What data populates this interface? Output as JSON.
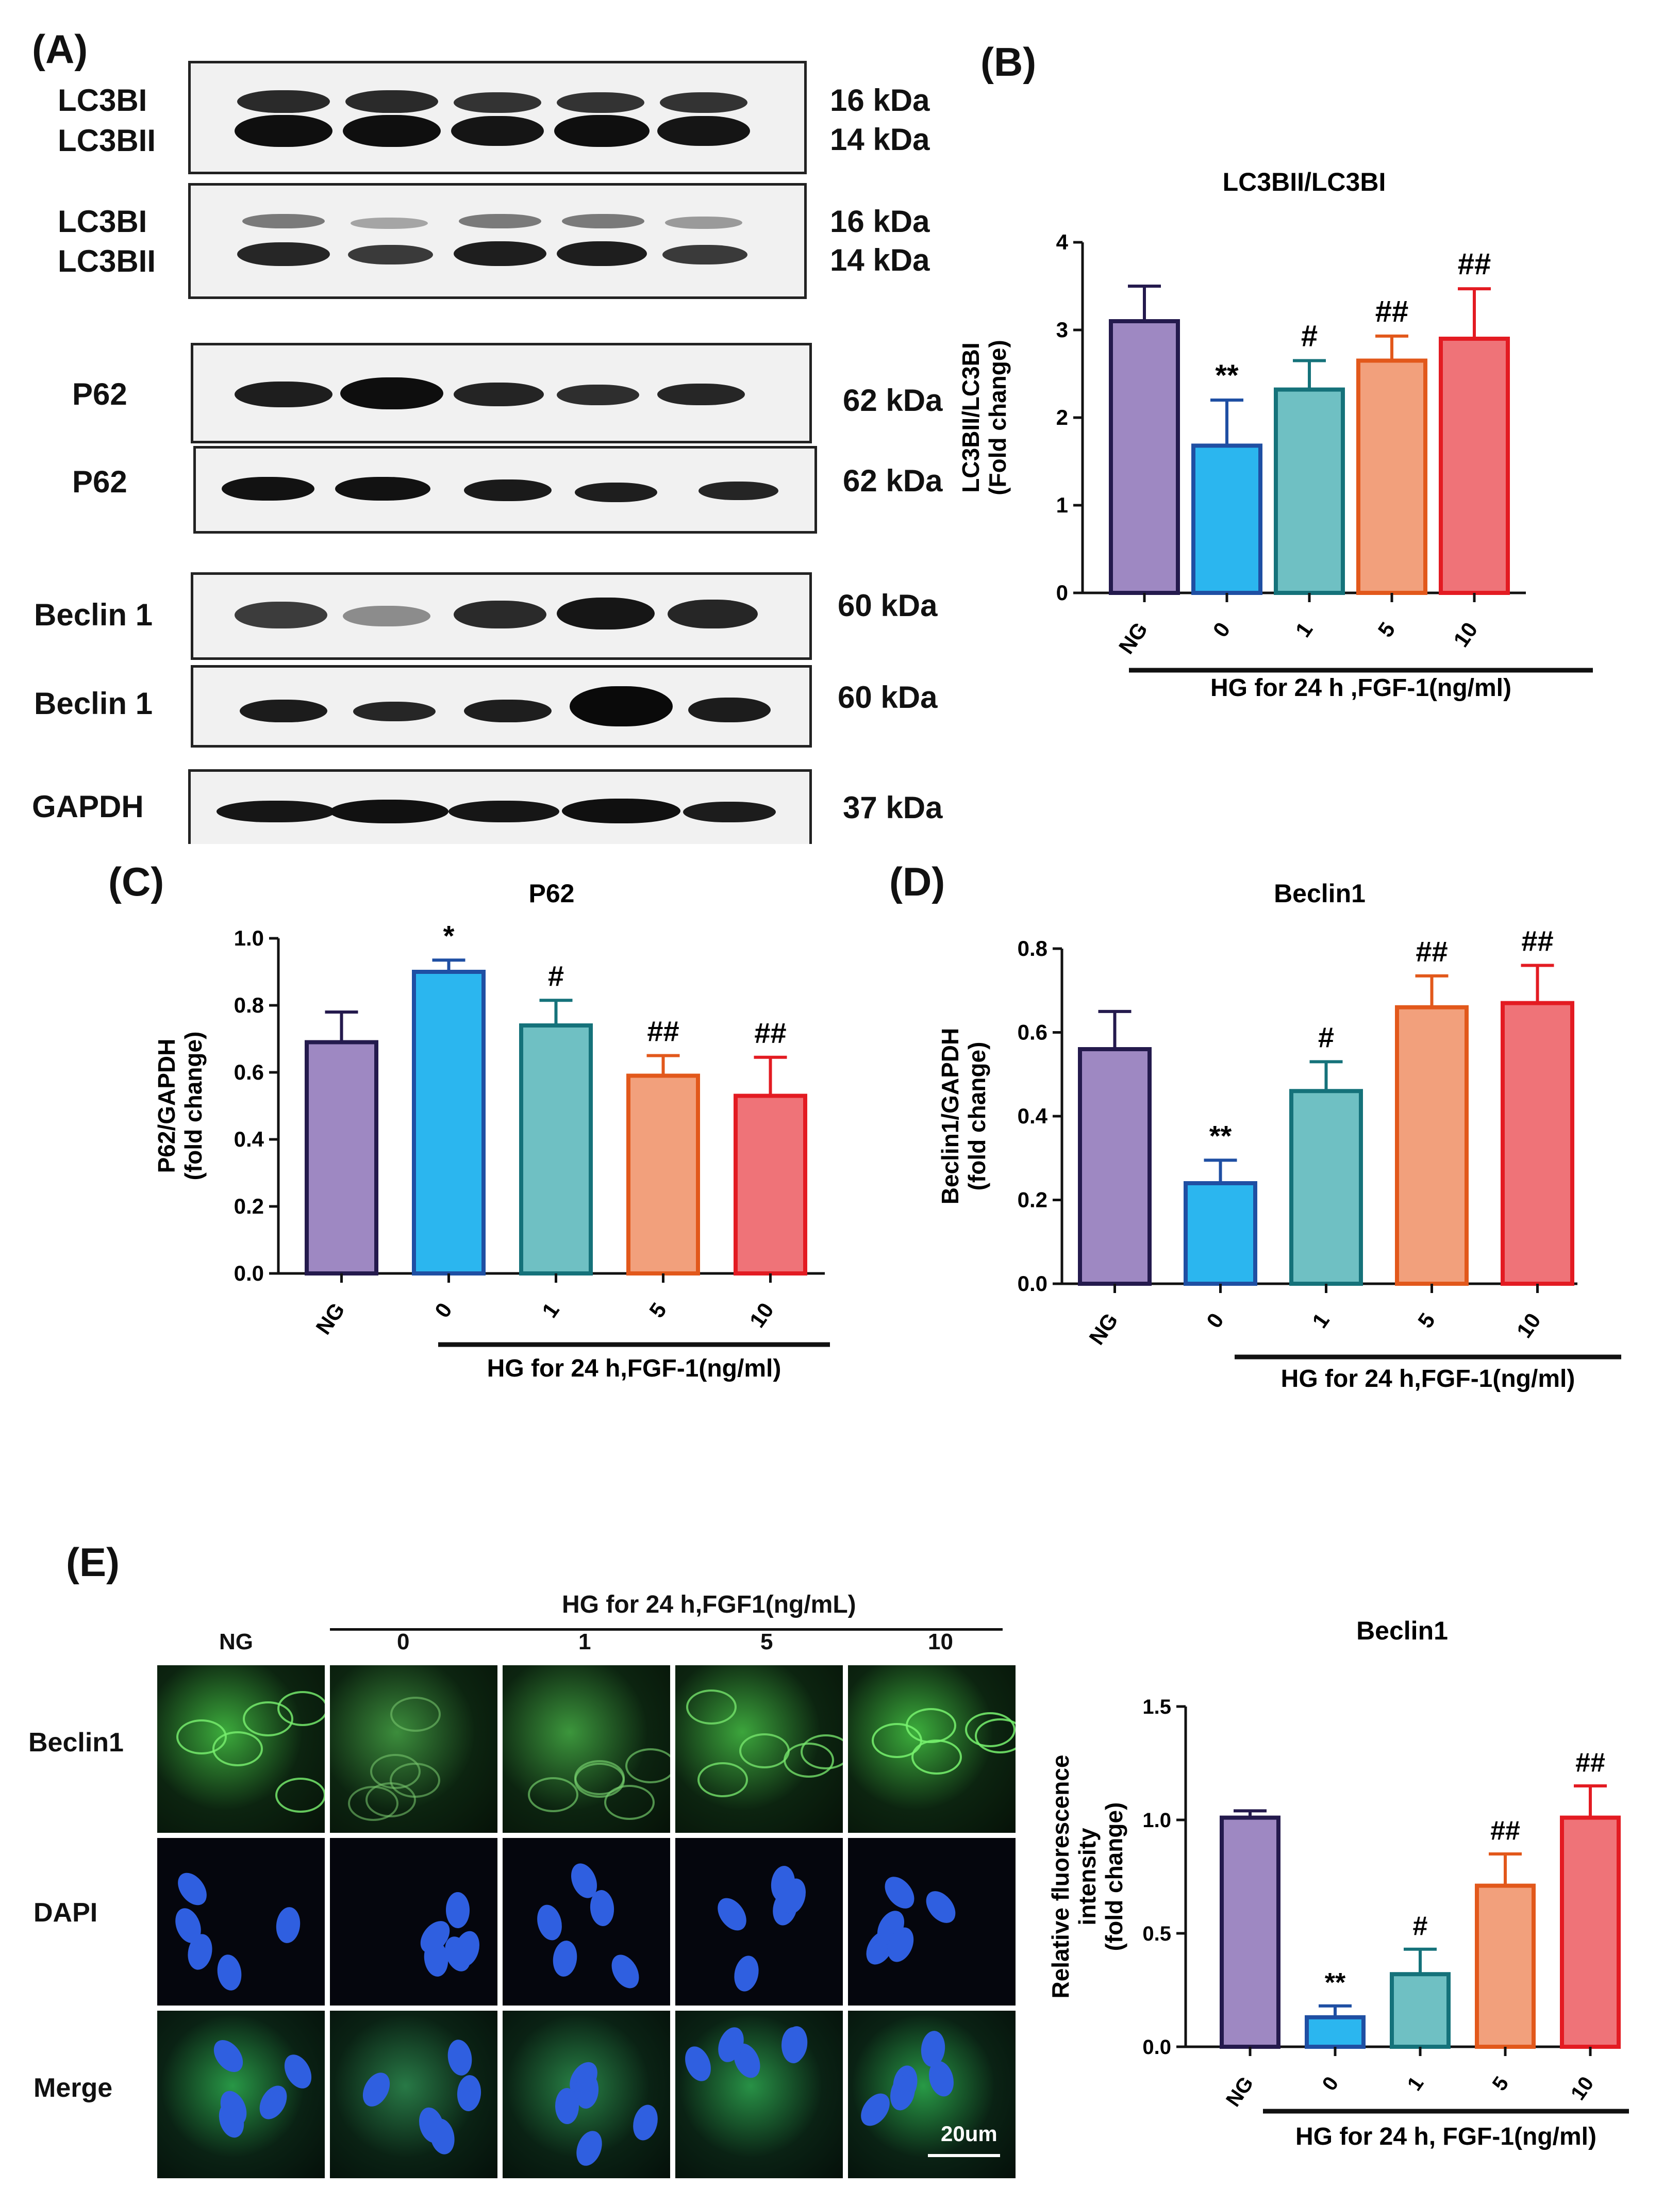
{
  "panels": {
    "A": "(A)",
    "B": "(B)",
    "C": "(C)",
    "D": "(D)",
    "E": "(E)"
  },
  "blots": {
    "labels": {
      "lc3bi": "LC3BI",
      "lc3bii": "LC3BII",
      "p62": "P62",
      "beclin": "Beclin 1",
      "gapdh": "GAPDH"
    },
    "kda": {
      "k16": "16 kDa",
      "k14": "14 kDa",
      "k62": "62 kDa",
      "k60": "60 kDa",
      "k37": "37 kDa"
    }
  },
  "colors": {
    "NG": {
      "fill": "#9e88c2",
      "edge": "#241a4d"
    },
    "0": {
      "fill": "#2bb6ef",
      "edge": "#1f4fa3"
    },
    "1": {
      "fill": "#6fc0c3",
      "edge": "#15727a"
    },
    "5": {
      "fill": "#f2a07c",
      "edge": "#e2581b"
    },
    "10": {
      "fill": "#ef7378",
      "edge": "#e31b22"
    }
  },
  "chart_data": [
    {
      "id": "B",
      "type": "bar",
      "title": "LC3BII/LC3BI",
      "ylabel": [
        "LC3BII/LC3BI",
        "(Fold change)"
      ],
      "xlabel": "HG for 24 h ,FGF-1(ng/ml)",
      "categories": [
        "NG",
        "0",
        "1",
        "5",
        "10"
      ],
      "values": [
        3.1,
        1.68,
        2.32,
        2.65,
        2.9
      ],
      "errors": [
        0.4,
        0.52,
        0.33,
        0.28,
        0.57
      ],
      "annotations": [
        "",
        "**",
        "#",
        "##",
        "##"
      ],
      "ylim": [
        0,
        4
      ],
      "yticks": [
        "0",
        "1",
        "2",
        "3",
        "4"
      ],
      "ytickvals": [
        0,
        1,
        2,
        3,
        4
      ]
    },
    {
      "id": "C",
      "type": "bar",
      "title": "P62",
      "ylabel": [
        "P62/GAPDH",
        "(fold change)"
      ],
      "xlabel": "HG for 24 h,FGF-1(ng/ml)",
      "categories": [
        "NG",
        "0",
        "1",
        "5",
        "10"
      ],
      "values": [
        0.69,
        0.9,
        0.74,
        0.59,
        0.53
      ],
      "errors": [
        0.09,
        0.035,
        0.075,
        0.06,
        0.115
      ],
      "annotations": [
        "",
        "*",
        "#",
        "##",
        "##"
      ],
      "ylim": [
        0,
        1.0
      ],
      "yticks": [
        "0.0",
        "0.2",
        "0.4",
        "0.6",
        "0.8",
        "1.0"
      ],
      "ytickvals": [
        0,
        0.2,
        0.4,
        0.6,
        0.8,
        1.0
      ]
    },
    {
      "id": "D",
      "type": "bar",
      "title": "Beclin1",
      "ylabel": [
        "Beclin1/GAPDH",
        "(fold change)"
      ],
      "xlabel": "HG for 24 h,FGF-1(ng/ml)",
      "categories": [
        "NG",
        "0",
        "1",
        "5",
        "10"
      ],
      "values": [
        0.56,
        0.24,
        0.46,
        0.66,
        0.67
      ],
      "errors": [
        0.09,
        0.055,
        0.07,
        0.075,
        0.09
      ],
      "annotations": [
        "",
        "**",
        "#",
        "##",
        "##"
      ],
      "ylim": [
        0,
        0.8
      ],
      "yticks": [
        "0.0",
        "0.2",
        "0.4",
        "0.6",
        "0.8"
      ],
      "ytickvals": [
        0,
        0.2,
        0.4,
        0.6,
        0.8
      ]
    },
    {
      "id": "E",
      "type": "bar",
      "title": "Beclin1",
      "ylabel": [
        "Relative fluorescence",
        "intensity",
        "(fold change)"
      ],
      "xlabel": "HG for 24 h, FGF-1(ng/ml)",
      "categories": [
        "NG",
        "0",
        "1",
        "5",
        "10"
      ],
      "values": [
        1.01,
        0.13,
        0.32,
        0.71,
        1.01
      ],
      "errors": [
        0.03,
        0.05,
        0.11,
        0.14,
        0.14
      ],
      "annotations": [
        "",
        "**",
        "#",
        "##",
        "##"
      ],
      "ylim": [
        0,
        1.5
      ],
      "yticks": [
        "0.0",
        "0.5",
        "1.0",
        "1.5"
      ],
      "ytickvals": [
        0,
        0.5,
        1.0,
        1.5
      ]
    }
  ],
  "micrograph": {
    "header": "HG for 24 h,FGF1(ng/mL)",
    "columns": [
      "NG",
      "0",
      "1",
      "5",
      "10"
    ],
    "rows": [
      "Beclin1",
      "DAPI",
      "Merge"
    ],
    "scale": "20um"
  }
}
